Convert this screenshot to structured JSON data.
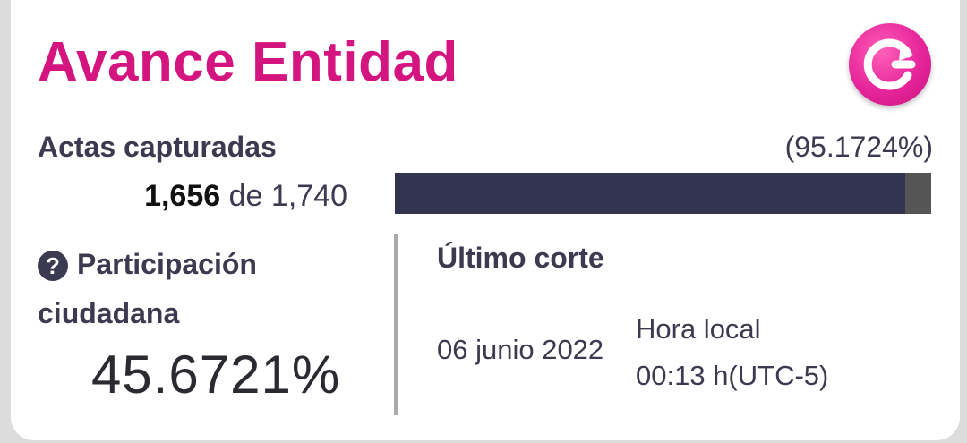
{
  "card": {
    "title": "Avance Entidad",
    "refresh_icon": "refresh-icon",
    "accent_color": "#d4147f"
  },
  "actas": {
    "label": "Actas capturadas",
    "percent_text": "(95.1724%)",
    "captured": "1,656",
    "connector": "de",
    "total": "1,740",
    "progress_fraction": 0.951724
  },
  "participacion": {
    "help_icon": "question-circle-icon",
    "help_glyph": "?",
    "label": "Participación ciudadana",
    "value": "45.6721%"
  },
  "corte": {
    "label": "Último corte",
    "date": "06 junio 2022",
    "time_label": "Hora local",
    "time_value": "00:13 h(UTC-5)"
  }
}
